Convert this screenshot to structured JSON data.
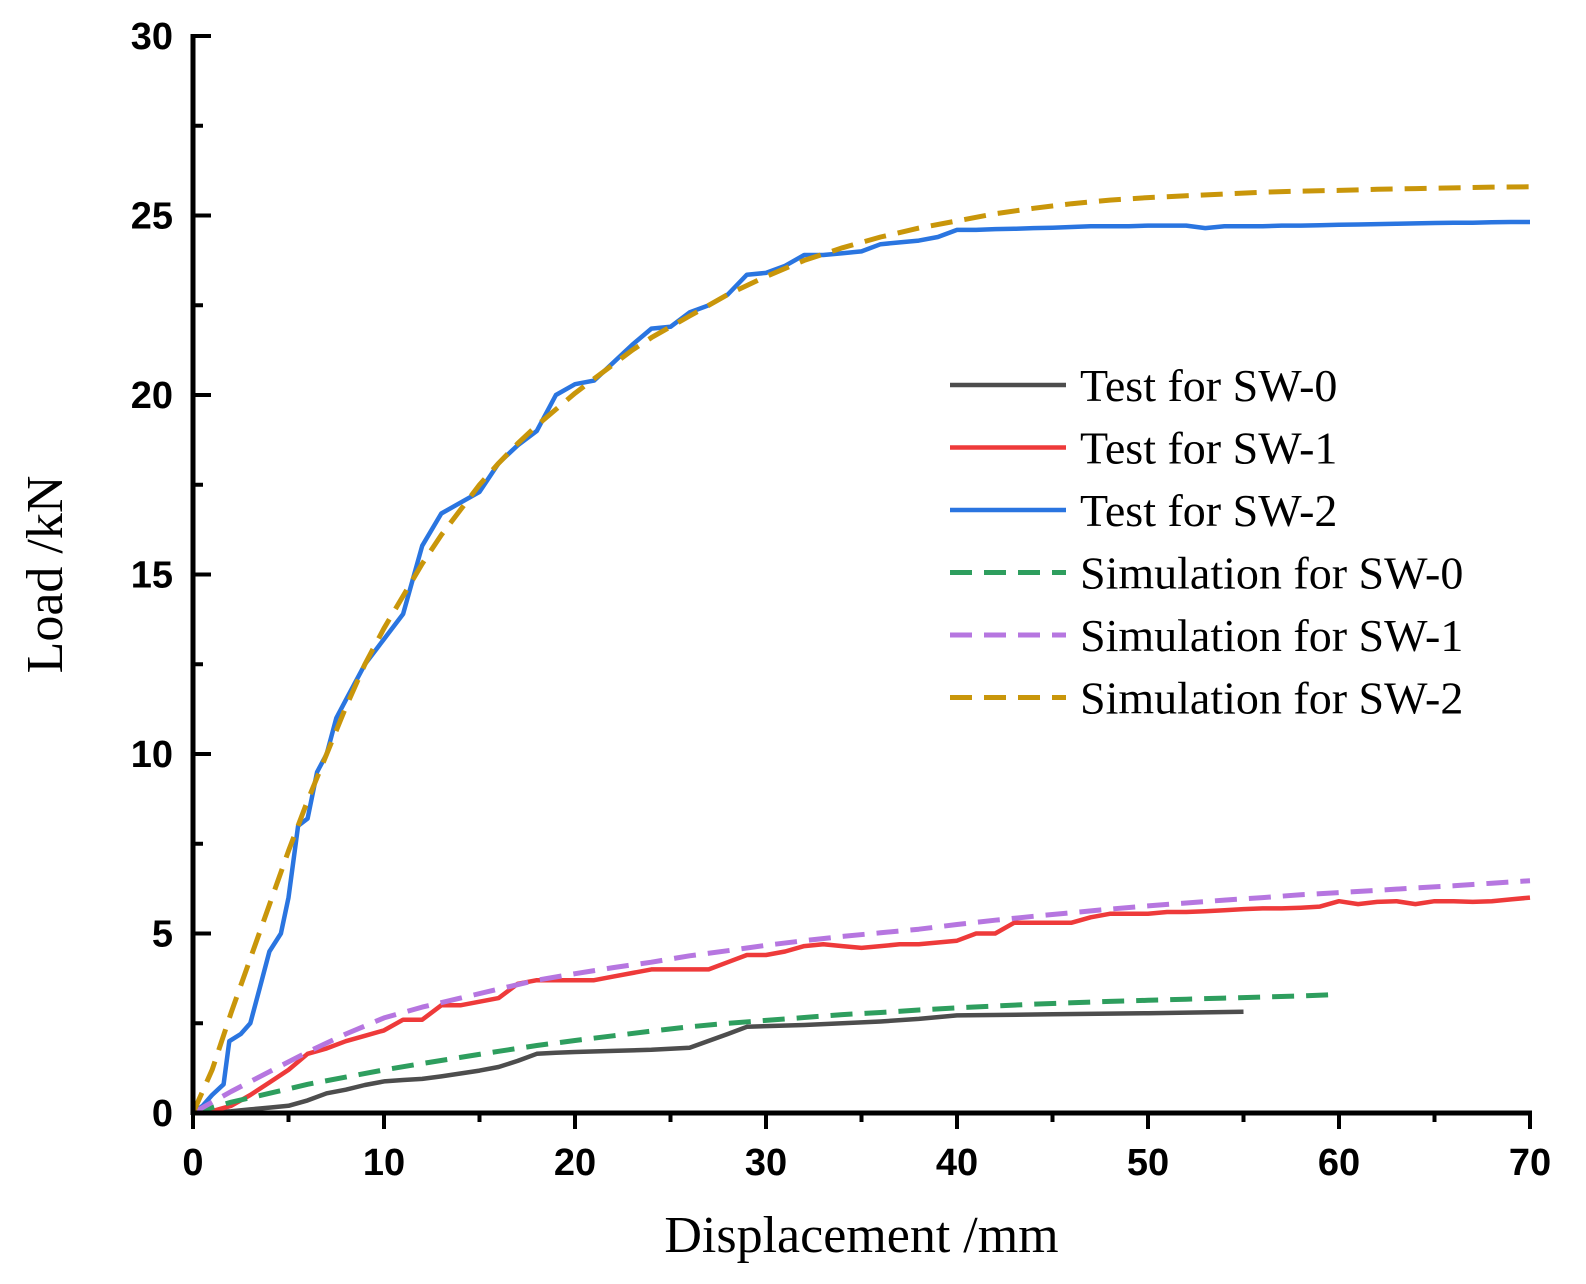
{
  "chart_data": {
    "type": "line",
    "title": "",
    "xlabel": "Displacement /mm",
    "ylabel": "Load /kN",
    "xlim": [
      0,
      70
    ],
    "ylim": [
      0,
      30
    ],
    "xticks": [
      "0",
      "10",
      "20",
      "30",
      "40",
      "50",
      "60",
      "70"
    ],
    "yticks": [
      "0",
      "5",
      "10",
      "15",
      "20",
      "25",
      "30"
    ],
    "grid": false,
    "legend_position": "center-right",
    "series": [
      {
        "name": "Test for SW-0",
        "color": "#4d4d4d",
        "style": "solid",
        "x": [
          0,
          1,
          2,
          3,
          4,
          5,
          6,
          7,
          8,
          9,
          10,
          11,
          12,
          13,
          14,
          15,
          16,
          17,
          18,
          19,
          20,
          22,
          24,
          26,
          28,
          29,
          30,
          32,
          34,
          36,
          38,
          40,
          45,
          50,
          55
        ],
        "y": [
          0,
          0.02,
          0.05,
          0.1,
          0.15,
          0.2,
          0.35,
          0.55,
          0.65,
          0.78,
          0.88,
          0.92,
          0.95,
          1.02,
          1.1,
          1.18,
          1.28,
          1.45,
          1.65,
          1.68,
          1.7,
          1.73,
          1.76,
          1.82,
          2.2,
          2.4,
          2.42,
          2.45,
          2.5,
          2.55,
          2.62,
          2.72,
          2.75,
          2.78,
          2.82
        ]
      },
      {
        "name": "Test for SW-1",
        "color": "#ee3a3a",
        "style": "solid",
        "x": [
          0,
          1,
          2,
          3,
          4,
          5,
          6,
          7,
          8,
          9,
          10,
          11,
          12,
          13,
          14,
          15,
          16,
          17,
          18,
          19,
          20,
          21,
          22,
          23,
          24,
          25,
          26,
          27,
          28,
          29,
          30,
          31,
          32,
          33,
          34,
          35,
          36,
          37,
          38,
          39,
          40,
          41,
          42,
          43,
          44,
          45,
          46,
          47,
          48,
          49,
          50,
          51,
          52,
          53,
          54,
          55,
          56,
          57,
          58,
          59,
          60,
          61,
          62,
          63,
          64,
          65,
          66,
          67,
          68,
          69,
          70
        ],
        "y": [
          0,
          0.05,
          0.2,
          0.5,
          0.85,
          1.2,
          1.65,
          1.8,
          2.0,
          2.15,
          2.3,
          2.6,
          2.6,
          3.0,
          3.0,
          3.1,
          3.2,
          3.6,
          3.7,
          3.7,
          3.7,
          3.7,
          3.8,
          3.9,
          4.0,
          4.0,
          4.0,
          4.0,
          4.2,
          4.4,
          4.4,
          4.5,
          4.65,
          4.7,
          4.65,
          4.6,
          4.65,
          4.7,
          4.7,
          4.75,
          4.8,
          5.0,
          5.0,
          5.3,
          5.3,
          5.3,
          5.3,
          5.45,
          5.55,
          5.55,
          5.55,
          5.6,
          5.6,
          5.62,
          5.65,
          5.68,
          5.7,
          5.7,
          5.72,
          5.75,
          5.9,
          5.82,
          5.88,
          5.9,
          5.82,
          5.9,
          5.9,
          5.88,
          5.9,
          5.95,
          6.0
        ]
      },
      {
        "name": "Test for SW-2",
        "color": "#2a75e0",
        "style": "solid",
        "x": [
          0,
          0.5,
          1,
          1.6,
          1.9,
          2.5,
          3,
          3.5,
          4,
          4.6,
          5,
          5.5,
          6,
          6.5,
          7,
          7.5,
          8,
          9,
          10,
          11,
          12,
          13,
          14,
          15,
          16,
          17,
          18,
          19,
          20,
          21,
          22,
          23,
          24,
          25,
          26,
          27,
          28,
          29,
          30,
          31,
          32,
          33,
          34,
          35,
          36,
          37,
          38,
          39,
          40,
          41,
          42,
          43,
          44,
          45,
          46,
          47,
          48,
          49,
          50,
          51,
          52,
          53,
          54,
          55,
          56,
          57,
          58,
          59,
          60,
          61,
          62,
          63,
          64,
          65,
          66,
          67,
          68,
          69,
          70
        ],
        "y": [
          0,
          0.2,
          0.5,
          0.8,
          2.0,
          2.2,
          2.5,
          3.5,
          4.5,
          5.0,
          6.0,
          8.0,
          8.2,
          9.5,
          10.0,
          11.0,
          11.5,
          12.5,
          13.2,
          13.9,
          15.8,
          16.7,
          17.0,
          17.3,
          18.1,
          18.6,
          19.0,
          20.0,
          20.3,
          20.4,
          20.9,
          21.4,
          21.85,
          21.9,
          22.3,
          22.5,
          22.8,
          23.35,
          23.4,
          23.6,
          23.9,
          23.9,
          23.95,
          24.0,
          24.2,
          24.25,
          24.3,
          24.4,
          24.6,
          24.6,
          24.62,
          24.63,
          24.65,
          24.66,
          24.68,
          24.7,
          24.7,
          24.7,
          24.72,
          24.72,
          24.72,
          24.65,
          24.7,
          24.7,
          24.7,
          24.72,
          24.72,
          24.73,
          24.74,
          24.75,
          24.76,
          24.77,
          24.78,
          24.79,
          24.8,
          24.8,
          24.81,
          24.82,
          24.82
        ]
      },
      {
        "name": "Simulation for SW-0",
        "color": "#2e9e5e",
        "style": "dashed",
        "x": [
          0,
          2,
          4,
          6,
          8,
          10,
          12,
          14,
          16,
          18,
          20,
          22,
          24,
          26,
          28,
          30,
          32,
          34,
          36,
          38,
          40,
          42,
          44,
          46,
          48,
          50,
          52,
          54,
          56,
          58,
          60
        ],
        "y": [
          0,
          0.3,
          0.55,
          0.8,
          1.0,
          1.2,
          1.38,
          1.55,
          1.72,
          1.88,
          2.02,
          2.15,
          2.28,
          2.4,
          2.5,
          2.58,
          2.66,
          2.74,
          2.8,
          2.87,
          2.93,
          2.98,
          3.03,
          3.07,
          3.11,
          3.14,
          3.17,
          3.2,
          3.23,
          3.26,
          3.3
        ]
      },
      {
        "name": "Simulation for SW-1",
        "color": "#b676e0",
        "style": "dashed",
        "x": [
          0,
          2,
          4,
          6,
          8,
          10,
          12,
          14,
          16,
          18,
          20,
          22,
          24,
          26,
          28,
          30,
          32,
          34,
          36,
          38,
          40,
          42,
          44,
          46,
          48,
          50,
          52,
          54,
          56,
          58,
          60,
          62,
          64,
          66,
          68,
          70
        ],
        "y": [
          0,
          0.6,
          1.15,
          1.7,
          2.2,
          2.65,
          2.95,
          3.2,
          3.45,
          3.7,
          3.88,
          4.05,
          4.2,
          4.38,
          4.52,
          4.67,
          4.8,
          4.92,
          5.02,
          5.12,
          5.25,
          5.37,
          5.48,
          5.58,
          5.68,
          5.77,
          5.85,
          5.93,
          6.0,
          6.08,
          6.14,
          6.2,
          6.27,
          6.33,
          6.4,
          6.47
        ]
      },
      {
        "name": "Simulation for SW-2",
        "color": "#c9960a",
        "style": "dashed",
        "x": [
          0,
          1,
          2,
          3,
          4,
          5,
          6,
          7,
          8,
          9,
          10,
          11,
          12,
          13,
          14,
          15,
          16,
          17,
          18,
          19,
          20,
          21,
          22,
          23,
          24,
          25,
          26,
          27,
          28,
          29,
          30,
          32,
          34,
          36,
          38,
          40,
          42,
          44,
          46,
          48,
          50,
          52,
          54,
          56,
          58,
          60,
          62,
          64,
          66,
          68,
          70
        ],
        "y": [
          0,
          1.2,
          2.8,
          4.3,
          5.8,
          7.3,
          8.7,
          10.0,
          11.3,
          12.5,
          13.5,
          14.4,
          15.3,
          16.1,
          16.8,
          17.5,
          18.1,
          18.65,
          19.15,
          19.6,
          20.05,
          20.45,
          20.85,
          21.25,
          21.6,
          21.9,
          22.2,
          22.5,
          22.8,
          23.05,
          23.3,
          23.75,
          24.1,
          24.4,
          24.65,
          24.85,
          25.05,
          25.2,
          25.33,
          25.43,
          25.5,
          25.55,
          25.6,
          25.65,
          25.68,
          25.7,
          25.73,
          25.75,
          25.77,
          25.79,
          25.8
        ]
      }
    ]
  }
}
